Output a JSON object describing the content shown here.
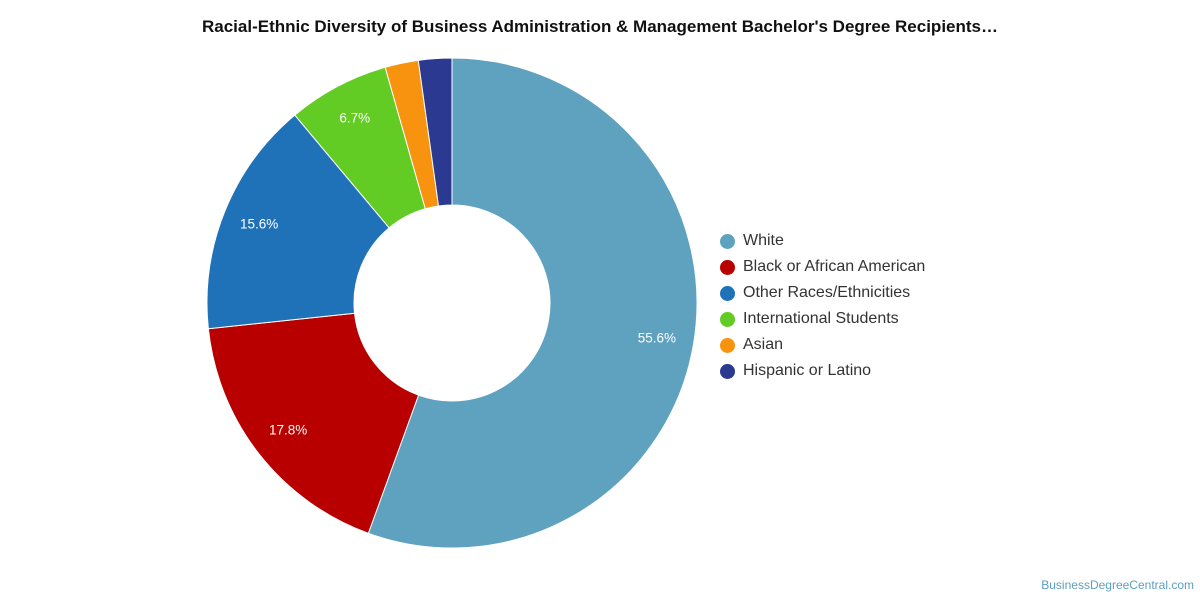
{
  "chart_data": {
    "type": "pie",
    "title": "Racial-Ethnic Diversity of Business Administration & Management Bachelor's Degree Recipients…",
    "donut": true,
    "legend_position": "right",
    "categories": [
      "White",
      "Black or African American",
      "Other Races/Ethnicities",
      "International Students",
      "Asian",
      "Hispanic or Latino"
    ],
    "values": [
      55.6,
      17.8,
      15.6,
      6.7,
      2.2,
      2.2
    ],
    "data_labels": [
      "55.6%",
      "17.8%",
      "15.6%",
      "6.7%",
      "",
      ""
    ],
    "colors": [
      "#5ea2c0",
      "#b80000",
      "#1f72b8",
      "#62cc25",
      "#f7930e",
      "#2b3990"
    ]
  },
  "credit": "BusinessDegreeCentral.com"
}
